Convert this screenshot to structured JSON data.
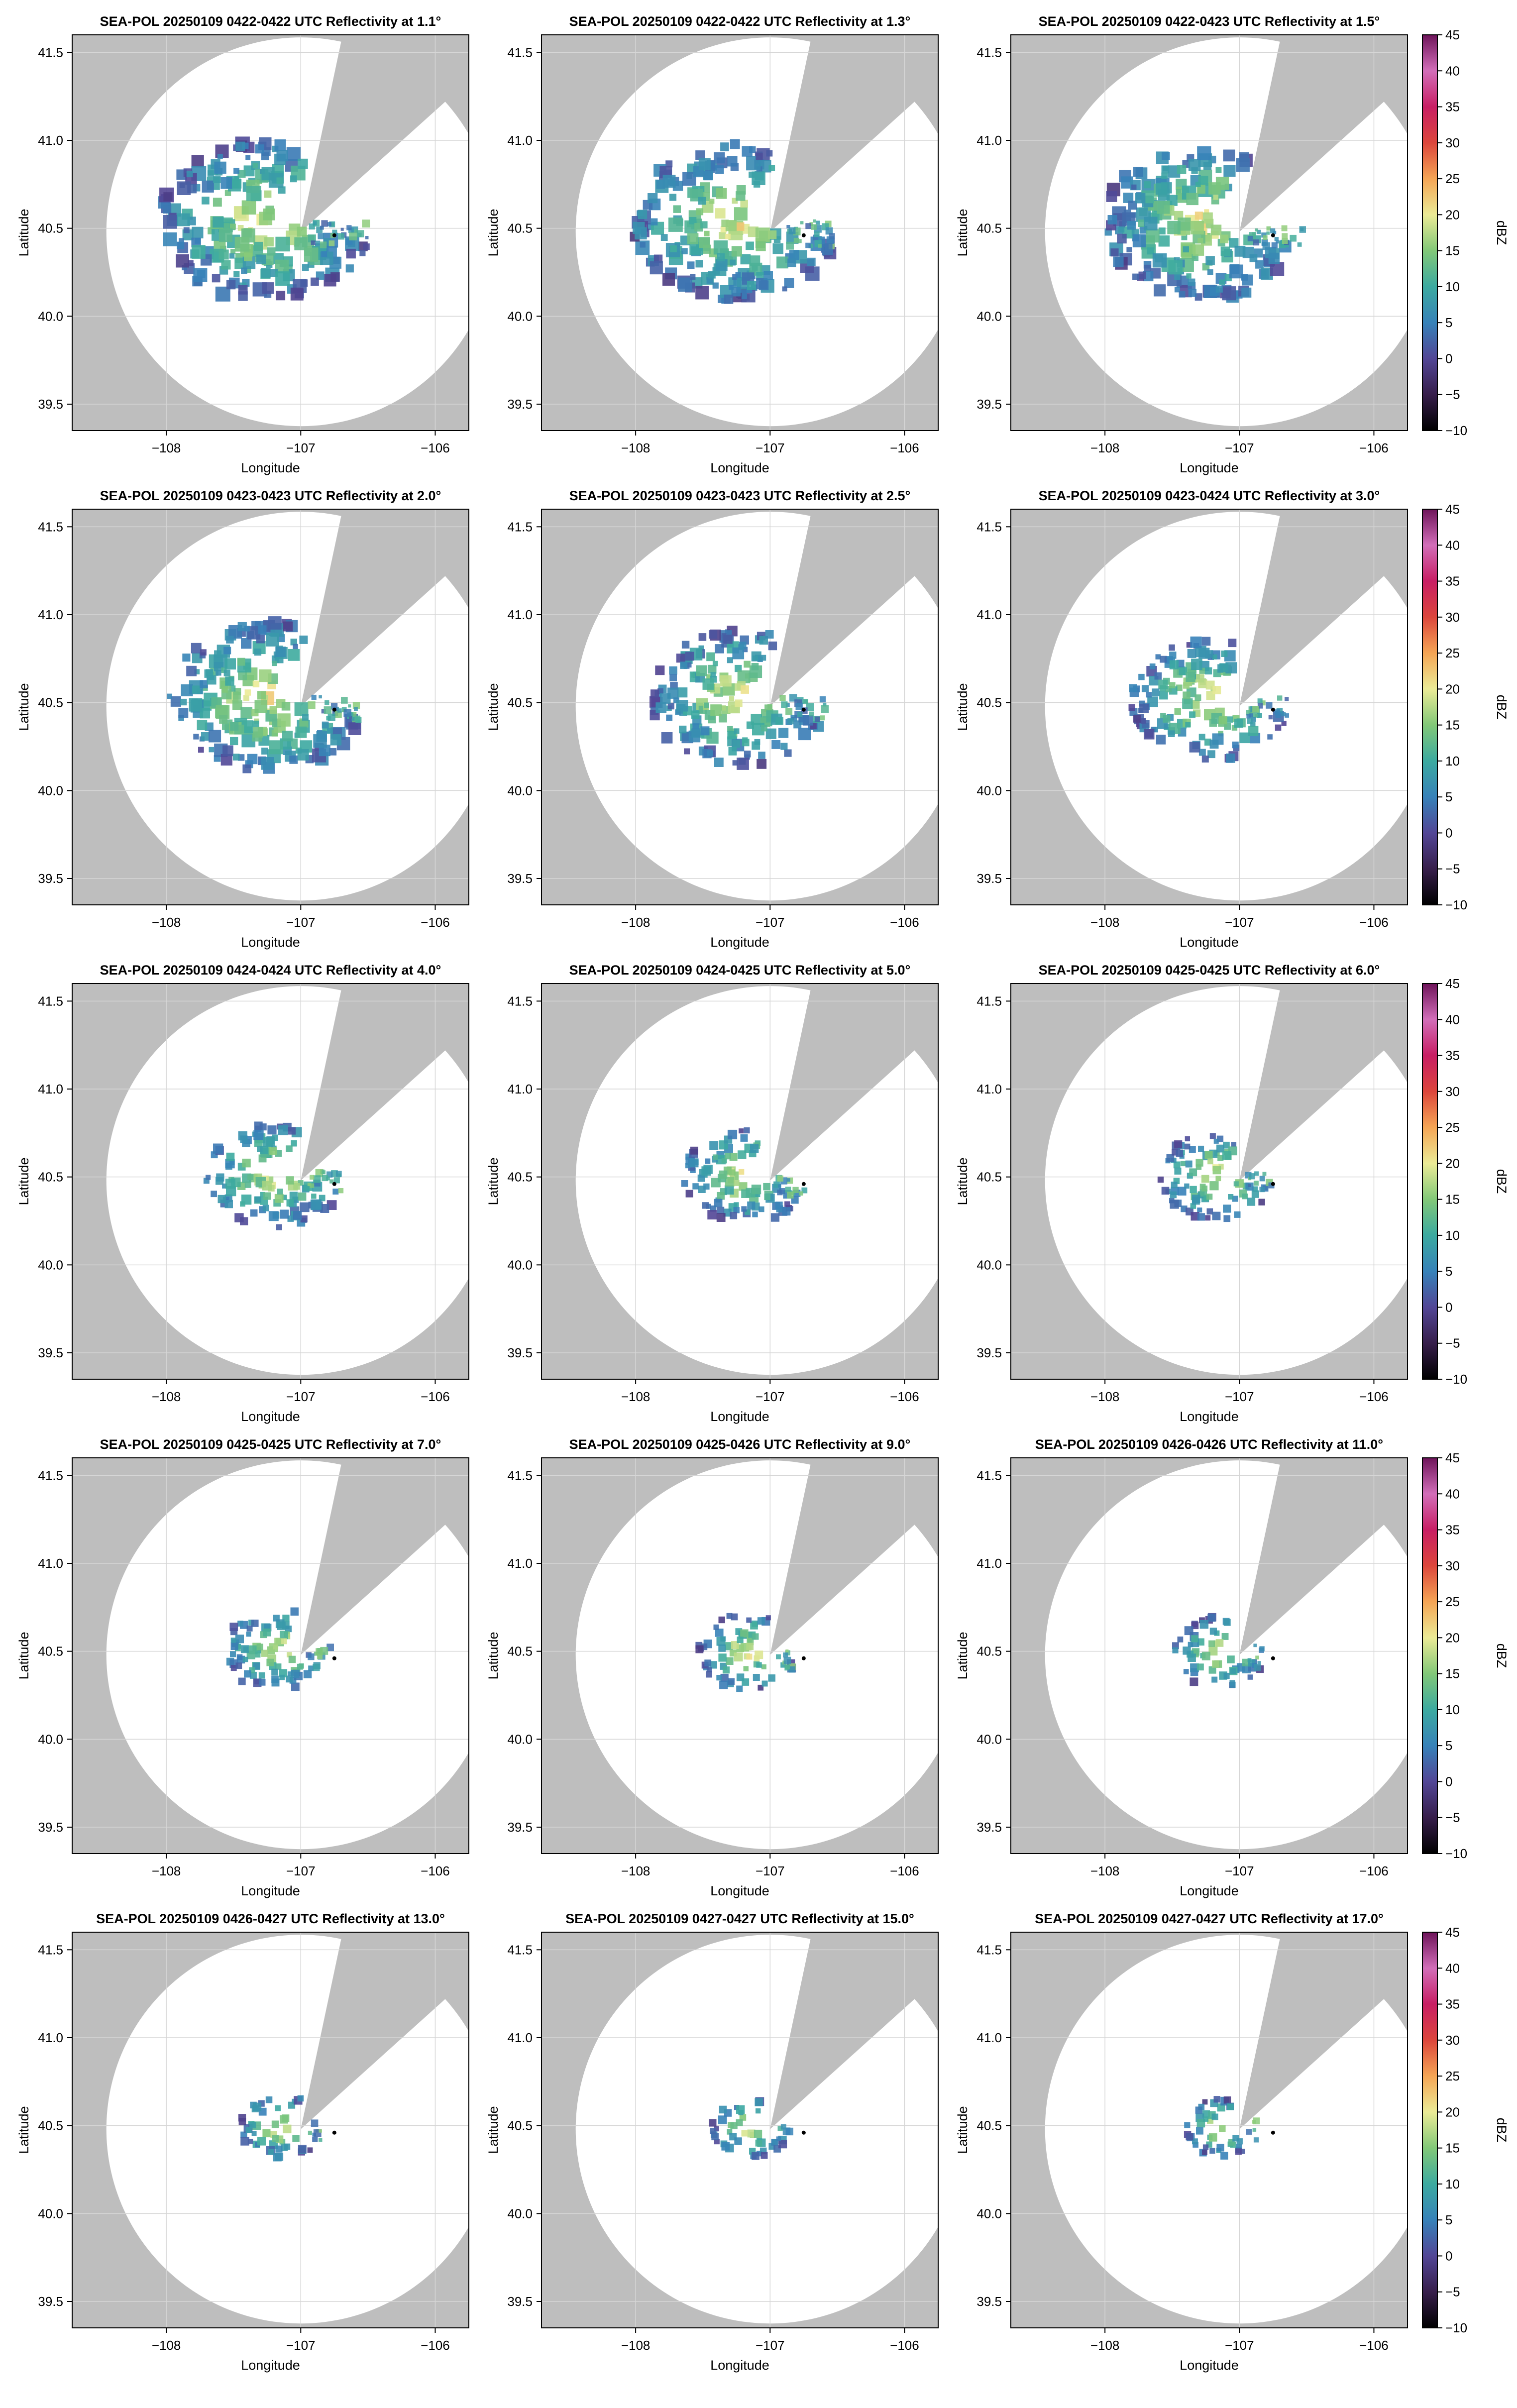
{
  "figure": {
    "colors": {
      "masked_background": "#bebebe",
      "coverage_fill": "#ffffff",
      "grid": "#d6d6d6",
      "axis": "#000000",
      "radar_marker": "#000000"
    },
    "colorbar": {
      "label": "dBZ",
      "ticks": [
        "45",
        "40",
        "35",
        "30",
        "25",
        "20",
        "15",
        "10",
        "5",
        "0",
        "−5",
        "−10"
      ],
      "range": [
        -10,
        45
      ],
      "colormap": "spectral-like (black → purple → blue → teal → green → yellow → orange → red → magenta → purple)"
    }
  },
  "chart_data": [
    {
      "type": "heatmap",
      "title": "SEA-POL 20250109 0422-0422 UTC Reflectivity at 1.1°",
      "elevation_deg": 1.1,
      "echo_extent": 1.0,
      "xlabel": "Longitude",
      "ylabel": "Latitude",
      "xticks": [
        "−108",
        "−107",
        "−106"
      ],
      "yticks": [
        "41.5",
        "41.0",
        "40.5",
        "40.0",
        "39.5"
      ],
      "xlim": [
        -108.7,
        -105.75
      ],
      "ylim": [
        39.35,
        41.6
      ],
      "radar_location": [
        -106.75,
        40.46
      ],
      "grid": true
    },
    {
      "type": "heatmap",
      "title": "SEA-POL 20250109 0422-0422 UTC Reflectivity at 1.3°",
      "elevation_deg": 1.3,
      "echo_extent": 0.97,
      "xlabel": "Longitude",
      "ylabel": "Latitude",
      "xticks": [
        "−108",
        "−107",
        "−106"
      ],
      "yticks": [
        "41.5",
        "41.0",
        "40.5",
        "40.0",
        "39.5"
      ],
      "xlim": [
        -108.7,
        -105.75
      ],
      "ylim": [
        39.35,
        41.6
      ],
      "radar_location": [
        -106.75,
        40.46
      ],
      "grid": true
    },
    {
      "type": "heatmap",
      "title": "SEA-POL 20250109 0422-0423 UTC Reflectivity at 1.5°",
      "elevation_deg": 1.5,
      "echo_extent": 0.95,
      "xlabel": "Longitude",
      "ylabel": "Latitude",
      "xticks": [
        "−108",
        "−107",
        "−106"
      ],
      "yticks": [
        "41.5",
        "41.0",
        "40.5",
        "40.0",
        "39.5"
      ],
      "xlim": [
        -108.7,
        -105.75
      ],
      "ylim": [
        39.35,
        41.6
      ],
      "radar_location": [
        -106.75,
        40.46
      ],
      "grid": true
    },
    {
      "type": "heatmap",
      "title": "SEA-POL 20250109 0423-0423 UTC Reflectivity at 2.0°",
      "elevation_deg": 2.0,
      "echo_extent": 0.92,
      "xlabel": "Longitude",
      "ylabel": "Latitude",
      "xticks": [
        "−108",
        "−107",
        "−106"
      ],
      "yticks": [
        "41.5",
        "41.0",
        "40.5",
        "40.0",
        "39.5"
      ],
      "xlim": [
        -108.7,
        -105.75
      ],
      "ylim": [
        39.35,
        41.6
      ],
      "radar_location": [
        -106.75,
        40.46
      ],
      "grid": true
    },
    {
      "type": "heatmap",
      "title": "SEA-POL 20250109 0423-0423 UTC Reflectivity at 2.5°",
      "elevation_deg": 2.5,
      "echo_extent": 0.8,
      "xlabel": "Longitude",
      "ylabel": "Latitude",
      "xticks": [
        "−108",
        "−107",
        "−106"
      ],
      "yticks": [
        "41.5",
        "41.0",
        "40.5",
        "40.0",
        "39.5"
      ],
      "xlim": [
        -108.7,
        -105.75
      ],
      "ylim": [
        39.35,
        41.6
      ],
      "radar_location": [
        -106.75,
        40.46
      ],
      "grid": true
    },
    {
      "type": "heatmap",
      "title": "SEA-POL 20250109 0423-0424 UTC Reflectivity at 3.0°",
      "elevation_deg": 3.0,
      "echo_extent": 0.68,
      "xlabel": "Longitude",
      "ylabel": "Latitude",
      "xticks": [
        "−108",
        "−107",
        "−106"
      ],
      "yticks": [
        "41.5",
        "41.0",
        "40.5",
        "40.0",
        "39.5"
      ],
      "xlim": [
        -108.7,
        -105.75
      ],
      "ylim": [
        39.35,
        41.6
      ],
      "radar_location": [
        -106.75,
        40.46
      ],
      "grid": true
    },
    {
      "type": "heatmap",
      "title": "SEA-POL 20250109 0424-0424 UTC Reflectivity at 4.0°",
      "elevation_deg": 4.0,
      "echo_extent": 0.55,
      "xlabel": "Longitude",
      "ylabel": "Latitude",
      "xticks": [
        "−108",
        "−107",
        "−106"
      ],
      "yticks": [
        "41.5",
        "41.0",
        "40.5",
        "40.0",
        "39.5"
      ],
      "xlim": [
        -108.7,
        -105.75
      ],
      "ylim": [
        39.35,
        41.6
      ],
      "radar_location": [
        -106.75,
        40.46
      ],
      "grid": true
    },
    {
      "type": "heatmap",
      "title": "SEA-POL 20250109 0424-0425 UTC Reflectivity at 5.0°",
      "elevation_deg": 5.0,
      "echo_extent": 0.47,
      "xlabel": "Longitude",
      "ylabel": "Latitude",
      "xticks": [
        "−108",
        "−107",
        "−106"
      ],
      "yticks": [
        "41.5",
        "41.0",
        "40.5",
        "40.0",
        "39.5"
      ],
      "xlim": [
        -108.7,
        -105.75
      ],
      "ylim": [
        39.35,
        41.6
      ],
      "radar_location": [
        -106.75,
        40.46
      ],
      "grid": true
    },
    {
      "type": "heatmap",
      "title": "SEA-POL 20250109 0425-0425 UTC Reflectivity at 6.0°",
      "elevation_deg": 6.0,
      "echo_extent": 0.42,
      "xlabel": "Longitude",
      "ylabel": "Latitude",
      "xticks": [
        "−108",
        "−107",
        "−106"
      ],
      "yticks": [
        "41.5",
        "41.0",
        "40.5",
        "40.0",
        "39.5"
      ],
      "xlim": [
        -108.7,
        -105.75
      ],
      "ylim": [
        39.35,
        41.6
      ],
      "radar_location": [
        -106.75,
        40.46
      ],
      "grid": true
    },
    {
      "type": "heatmap",
      "title": "SEA-POL 20250109 0425-0425 UTC Reflectivity at 7.0°",
      "elevation_deg": 7.0,
      "echo_extent": 0.38,
      "xlabel": "Longitude",
      "ylabel": "Latitude",
      "xticks": [
        "−108",
        "−107",
        "−106"
      ],
      "yticks": [
        "41.5",
        "41.0",
        "40.5",
        "40.0",
        "39.5"
      ],
      "xlim": [
        -108.7,
        -105.75
      ],
      "ylim": [
        39.35,
        41.6
      ],
      "radar_location": [
        -106.75,
        40.46
      ],
      "grid": true
    },
    {
      "type": "heatmap",
      "title": "SEA-POL 20250109 0425-0426 UTC Reflectivity at 9.0°",
      "elevation_deg": 9.0,
      "echo_extent": 0.32,
      "xlabel": "Longitude",
      "ylabel": "Latitude",
      "xticks": [
        "−108",
        "−107",
        "−106"
      ],
      "yticks": [
        "41.5",
        "41.0",
        "40.5",
        "40.0",
        "39.5"
      ],
      "xlim": [
        -108.7,
        -105.75
      ],
      "ylim": [
        39.35,
        41.6
      ],
      "radar_location": [
        -106.75,
        40.46
      ],
      "grid": true
    },
    {
      "type": "heatmap",
      "title": "SEA-POL 20250109 0426-0426 UTC Reflectivity at 11.0°",
      "elevation_deg": 11.0,
      "echo_extent": 0.27,
      "xlabel": "Longitude",
      "ylabel": "Latitude",
      "xticks": [
        "−108",
        "−107",
        "−106"
      ],
      "yticks": [
        "41.5",
        "41.0",
        "40.5",
        "40.0",
        "39.5"
      ],
      "xlim": [
        -108.7,
        -105.75
      ],
      "ylim": [
        39.35,
        41.6
      ],
      "radar_location": [
        -106.75,
        40.46
      ],
      "grid": true
    },
    {
      "type": "heatmap",
      "title": "SEA-POL 20250109 0426-0427 UTC Reflectivity at 13.0°",
      "elevation_deg": 13.0,
      "echo_extent": 0.22,
      "xlabel": "Longitude",
      "ylabel": "Latitude",
      "xticks": [
        "−108",
        "−107",
        "−106"
      ],
      "yticks": [
        "41.5",
        "41.0",
        "40.5",
        "40.0",
        "39.5"
      ],
      "xlim": [
        -108.7,
        -105.75
      ],
      "ylim": [
        39.35,
        41.6
      ],
      "radar_location": [
        -106.75,
        40.46
      ],
      "grid": true
    },
    {
      "type": "heatmap",
      "title": "SEA-POL 20250109 0427-0427 UTC Reflectivity at 15.0°",
      "elevation_deg": 15.0,
      "echo_extent": 0.18,
      "xlabel": "Longitude",
      "ylabel": "Latitude",
      "xticks": [
        "−108",
        "−107",
        "−106"
      ],
      "yticks": [
        "41.5",
        "41.0",
        "40.5",
        "40.0",
        "39.5"
      ],
      "xlim": [
        -108.7,
        -105.75
      ],
      "ylim": [
        39.35,
        41.6
      ],
      "radar_location": [
        -106.75,
        40.46
      ],
      "grid": true
    },
    {
      "type": "heatmap",
      "title": "SEA-POL 20250109 0427-0427 UTC Reflectivity at 17.0°",
      "elevation_deg": 17.0,
      "echo_extent": 0.16,
      "xlabel": "Longitude",
      "ylabel": "Latitude",
      "xticks": [
        "−108",
        "−107",
        "−106"
      ],
      "yticks": [
        "41.5",
        "41.0",
        "40.5",
        "40.0",
        "39.5"
      ],
      "xlim": [
        -108.7,
        -105.75
      ],
      "ylim": [
        39.35,
        41.6
      ],
      "radar_location": [
        -106.75,
        40.46
      ],
      "grid": true
    }
  ]
}
